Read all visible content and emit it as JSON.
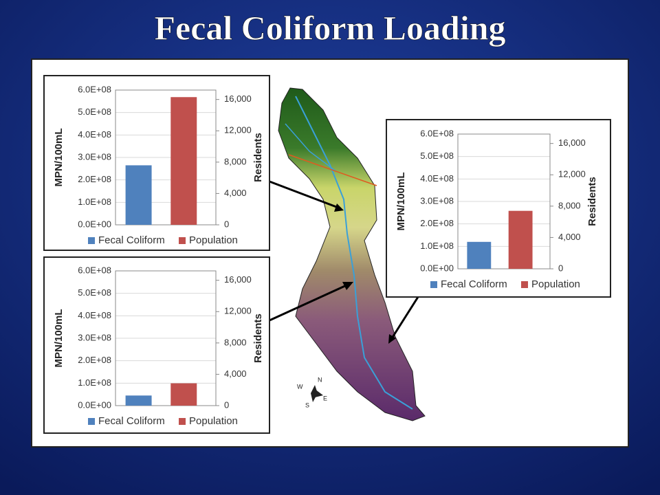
{
  "title": "Fecal Coliform Loading",
  "chart_data": [
    {
      "type": "bar",
      "ylabel": "MPN/100mL",
      "y2label": "Residents",
      "categories": [
        null
      ],
      "series": [
        {
          "name": "Fecal Coliform",
          "color": "#4f81bd",
          "values": [
            265000000
          ]
        },
        {
          "name": "Population",
          "color": "#c0504d",
          "values": [
            16300
          ],
          "axis": "y2"
        }
      ],
      "ylim": [
        0,
        600000000
      ],
      "yticks": [
        {
          "value": 0,
          "label": "0.0E+00"
        },
        {
          "value": 100000000,
          "label": "1.0E+08"
        },
        {
          "value": 200000000,
          "label": "2.0E+08"
        },
        {
          "value": 300000000,
          "label": "3.0E+08"
        },
        {
          "value": 400000000,
          "label": "4.0E+08"
        },
        {
          "value": 500000000,
          "label": "5.0E+08"
        },
        {
          "value": 600000000,
          "label": "6.0E+08"
        }
      ],
      "y2lim": [
        0,
        17200
      ],
      "y2ticks": [
        0,
        {
          "value": 4000,
          "label": "4,000"
        },
        {
          "value": 8000,
          "label": "8,000"
        },
        {
          "value": 12000,
          "label": "12,000"
        },
        {
          "value": 16000,
          "label": "16,000"
        }
      ],
      "legend": "bottom",
      "grid": true
    },
    {
      "type": "bar",
      "ylabel": "MPN/100mL",
      "y2label": "Residents",
      "categories": [
        null
      ],
      "series": [
        {
          "name": "Fecal Coliform",
          "color": "#4f81bd",
          "values": [
            45000000
          ]
        },
        {
          "name": "Population",
          "color": "#c0504d",
          "values": [
            2850
          ],
          "axis": "y2"
        }
      ],
      "ylim": [
        0,
        600000000
      ],
      "yticks": [
        {
          "value": 0,
          "label": "0.0E+00"
        },
        {
          "value": 100000000,
          "label": "1.0E+08"
        },
        {
          "value": 200000000,
          "label": "2.0E+08"
        },
        {
          "value": 300000000,
          "label": "3.0E+08"
        },
        {
          "value": 400000000,
          "label": "4.0E+08"
        },
        {
          "value": 500000000,
          "label": "5.0E+08"
        },
        {
          "value": 600000000,
          "label": "6.0E+08"
        }
      ],
      "y2lim": [
        0,
        17200
      ],
      "y2ticks": [
        0,
        {
          "value": 4000,
          "label": "4,000"
        },
        {
          "value": 8000,
          "label": "8,000"
        },
        {
          "value": 12000,
          "label": "12,000"
        },
        {
          "value": 16000,
          "label": "16,000"
        }
      ],
      "legend": "bottom",
      "grid": true
    },
    {
      "type": "bar",
      "ylabel": "MPN/100mL",
      "y2label": "Residents",
      "categories": [
        null
      ],
      "series": [
        {
          "name": "Fecal Coliform",
          "color": "#4f81bd",
          "values": [
            120000000
          ]
        },
        {
          "name": "Population",
          "color": "#c0504d",
          "values": [
            7400
          ],
          "axis": "y2"
        }
      ],
      "ylim": [
        0,
        600000000
      ],
      "yticks": [
        {
          "value": 0,
          "label": "0.0E+00"
        },
        {
          "value": 100000000,
          "label": "1.0E+08"
        },
        {
          "value": 200000000,
          "label": "2.0E+08"
        },
        {
          "value": 300000000,
          "label": "3.0E+08"
        },
        {
          "value": 400000000,
          "label": "4.0E+08"
        },
        {
          "value": 500000000,
          "label": "5.0E+08"
        },
        {
          "value": 600000000,
          "label": "6.0E+08"
        }
      ],
      "y2lim": [
        0,
        17200
      ],
      "y2ticks": [
        0,
        {
          "value": 4000,
          "label": "4,000"
        },
        {
          "value": 8000,
          "label": "8,000"
        },
        {
          "value": 12000,
          "label": "12,000"
        },
        {
          "value": 16000,
          "label": "16,000"
        }
      ],
      "legend": "bottom",
      "grid": true
    }
  ]
}
